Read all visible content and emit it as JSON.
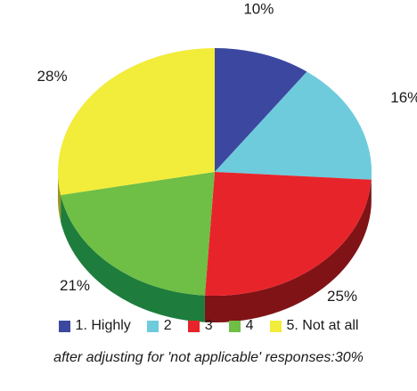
{
  "chart_data": {
    "type": "pie",
    "style": "3d",
    "categories": [
      "1. Highly",
      "2",
      "3",
      "4",
      "5. Not at all"
    ],
    "values": [
      10,
      16,
      25,
      21,
      28
    ],
    "labels": [
      "10%",
      "16%",
      "25%",
      "21%",
      "28%"
    ],
    "colors": [
      "#3c48a0",
      "#6ecbdc",
      "#e8242b",
      "#6fbe45",
      "#f2ec3b"
    ],
    "side_colors": [
      "#242c66",
      "#3f8a99",
      "#7f1316",
      "#1e7d3c",
      "#9a9420"
    ],
    "legend_position": "bottom",
    "footnote": "after adjusting for 'not applicable' responses:30%"
  }
}
